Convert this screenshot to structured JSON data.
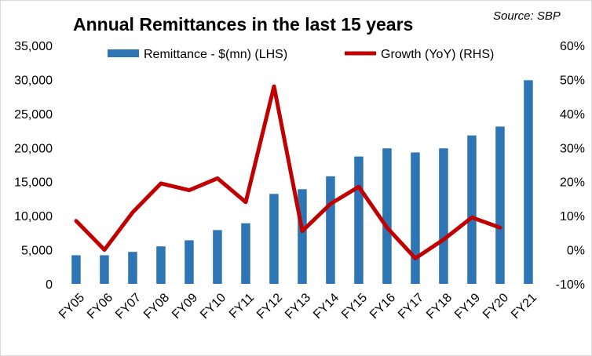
{
  "chart_data": {
    "type": "bar",
    "title": "Annual Remittances in the last 15 years",
    "source": "Source: SBP",
    "categories": [
      "FY05",
      "FY06",
      "FY07",
      "FY08",
      "FY09",
      "FY10",
      "FY11",
      "FY12",
      "FY13",
      "FY14",
      "FY15",
      "FY16",
      "FY17",
      "FY18",
      "FY19",
      "FY20",
      "FY21"
    ],
    "series": [
      {
        "name": "Remittance - $(mn) (LHS)",
        "type": "bar",
        "axis": "left",
        "color": "#2e75b6",
        "values": [
          4200,
          4200,
          4700,
          5500,
          6400,
          7900,
          8900,
          13200,
          13900,
          15800,
          18700,
          19900,
          19300,
          19900,
          21800,
          23100,
          29900
        ]
      },
      {
        "name": "Growth (YoY) (RHS)",
        "type": "line",
        "axis": "right",
        "color": "#c00000",
        "values": [
          8.5,
          0.0,
          11.0,
          19.5,
          17.5,
          21.0,
          14.0,
          48.0,
          5.5,
          13.5,
          18.5,
          6.5,
          -2.5,
          3.0,
          9.5,
          6.5,
          null
        ]
      }
    ],
    "ylim_left": [
      0,
      35000
    ],
    "yticks_left": [
      "0",
      "5,000",
      "10,000",
      "15,000",
      "20,000",
      "25,000",
      "30,000",
      "35,000"
    ],
    "ylim_right": [
      -10,
      60
    ],
    "yticks_right": [
      "-10%",
      "0%",
      "10%",
      "20%",
      "30%",
      "40%",
      "50%",
      "60%"
    ],
    "legend": "top",
    "grid": false
  }
}
